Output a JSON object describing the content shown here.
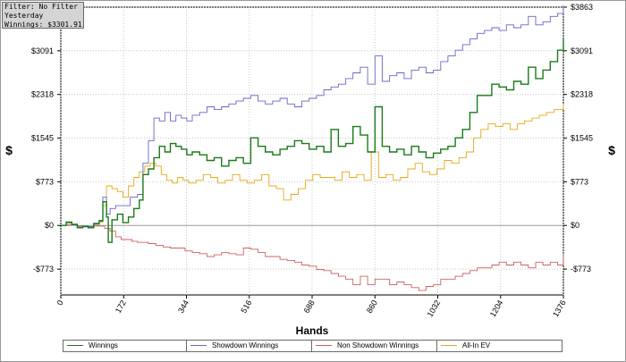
{
  "chart_data": {
    "type": "line",
    "xlabel": "Hands",
    "ylabel": "$",
    "xlim": [
      0,
      1376
    ],
    "ylim": [
      -1230,
      3863
    ],
    "x_ticks": [
      0,
      172,
      344,
      516,
      688,
      860,
      1032,
      1204,
      1376
    ],
    "y_ticks": [
      {
        "value": 3863,
        "label": "$3863"
      },
      {
        "value": 3091,
        "label": "$3091"
      },
      {
        "value": 2318,
        "label": "$2318"
      },
      {
        "value": 1545,
        "label": "$1545"
      },
      {
        "value": 773,
        "label": "$773"
      },
      {
        "value": 0,
        "label": "$0"
      },
      {
        "value": -773,
        "label": "-$773"
      }
    ],
    "grid": true,
    "legend_position": "bottom",
    "series": [
      {
        "name": "Winnings",
        "color": "#1a7a1a",
        "points": [
          [
            0,
            0
          ],
          [
            15,
            60
          ],
          [
            30,
            20
          ],
          [
            45,
            -40
          ],
          [
            60,
            -20
          ],
          [
            75,
            -40
          ],
          [
            90,
            30
          ],
          [
            105,
            80
          ],
          [
            115,
            420
          ],
          [
            125,
            150
          ],
          [
            130,
            -300
          ],
          [
            140,
            100
          ],
          [
            155,
            200
          ],
          [
            170,
            50
          ],
          [
            185,
            150
          ],
          [
            200,
            300
          ],
          [
            215,
            450
          ],
          [
            225,
            900
          ],
          [
            240,
            1000
          ],
          [
            255,
            1200
          ],
          [
            270,
            1400
          ],
          [
            285,
            1300
          ],
          [
            300,
            1450
          ],
          [
            315,
            1400
          ],
          [
            330,
            1350
          ],
          [
            345,
            1250
          ],
          [
            360,
            1300
          ],
          [
            380,
            1250
          ],
          [
            400,
            1150
          ],
          [
            420,
            1200
          ],
          [
            440,
            1050
          ],
          [
            460,
            1150
          ],
          [
            480,
            1200
          ],
          [
            500,
            1100
          ],
          [
            520,
            1550
          ],
          [
            540,
            1400
          ],
          [
            560,
            1300
          ],
          [
            580,
            1250
          ],
          [
            600,
            1350
          ],
          [
            620,
            1400
          ],
          [
            640,
            1500
          ],
          [
            660,
            1450
          ],
          [
            680,
            1350
          ],
          [
            700,
            1400
          ],
          [
            720,
            1300
          ],
          [
            740,
            1700
          ],
          [
            760,
            1400
          ],
          [
            780,
            1450
          ],
          [
            800,
            1750
          ],
          [
            820,
            1600
          ],
          [
            840,
            1300
          ],
          [
            860,
            2100
          ],
          [
            880,
            1400
          ],
          [
            900,
            1300
          ],
          [
            920,
            1350
          ],
          [
            940,
            1250
          ],
          [
            960,
            1400
          ],
          [
            980,
            1300
          ],
          [
            1000,
            1200
          ],
          [
            1020,
            1280
          ],
          [
            1040,
            1350
          ],
          [
            1060,
            1400
          ],
          [
            1080,
            1550
          ],
          [
            1100,
            1700
          ],
          [
            1120,
            2000
          ],
          [
            1140,
            2300
          ],
          [
            1160,
            2300
          ],
          [
            1180,
            2500
          ],
          [
            1200,
            2450
          ],
          [
            1220,
            2400
          ],
          [
            1240,
            2550
          ],
          [
            1260,
            2500
          ],
          [
            1280,
            2800
          ],
          [
            1300,
            2600
          ],
          [
            1320,
            2750
          ],
          [
            1340,
            2900
          ],
          [
            1360,
            3100
          ],
          [
            1376,
            3300
          ]
        ]
      },
      {
        "name": "Showdown Winnings",
        "color": "#6666cc",
        "points": [
          [
            0,
            0
          ],
          [
            15,
            50
          ],
          [
            30,
            10
          ],
          [
            45,
            -30
          ],
          [
            60,
            -10
          ],
          [
            75,
            -20
          ],
          [
            90,
            40
          ],
          [
            105,
            90
          ],
          [
            115,
            500
          ],
          [
            125,
            200
          ],
          [
            135,
            300
          ],
          [
            150,
            350
          ],
          [
            170,
            350
          ],
          [
            190,
            500
          ],
          [
            210,
            550
          ],
          [
            225,
            1100
          ],
          [
            240,
            1500
          ],
          [
            255,
            1900
          ],
          [
            270,
            1850
          ],
          [
            285,
            2000
          ],
          [
            300,
            1850
          ],
          [
            315,
            1950
          ],
          [
            330,
            1900
          ],
          [
            345,
            1850
          ],
          [
            360,
            1950
          ],
          [
            380,
            2000
          ],
          [
            400,
            2100
          ],
          [
            420,
            2050
          ],
          [
            440,
            2100
          ],
          [
            460,
            2150
          ],
          [
            480,
            2200
          ],
          [
            500,
            2250
          ],
          [
            520,
            2300
          ],
          [
            540,
            2200
          ],
          [
            560,
            2150
          ],
          [
            580,
            2200
          ],
          [
            600,
            2250
          ],
          [
            620,
            2150
          ],
          [
            640,
            2100
          ],
          [
            660,
            2200
          ],
          [
            680,
            2250
          ],
          [
            700,
            2300
          ],
          [
            720,
            2400
          ],
          [
            740,
            2450
          ],
          [
            760,
            2500
          ],
          [
            780,
            2600
          ],
          [
            800,
            2700
          ],
          [
            820,
            2800
          ],
          [
            840,
            2500
          ],
          [
            860,
            3000
          ],
          [
            880,
            2550
          ],
          [
            900,
            2650
          ],
          [
            920,
            2700
          ],
          [
            940,
            2600
          ],
          [
            960,
            2750
          ],
          [
            980,
            2800
          ],
          [
            1000,
            2700
          ],
          [
            1020,
            2750
          ],
          [
            1040,
            2900
          ],
          [
            1060,
            3000
          ],
          [
            1080,
            3100
          ],
          [
            1100,
            3200
          ],
          [
            1120,
            3300
          ],
          [
            1140,
            3400
          ],
          [
            1160,
            3450
          ],
          [
            1180,
            3500
          ],
          [
            1200,
            3450
          ],
          [
            1220,
            3550
          ],
          [
            1240,
            3500
          ],
          [
            1260,
            3550
          ],
          [
            1280,
            3700
          ],
          [
            1300,
            3550
          ],
          [
            1320,
            3600
          ],
          [
            1340,
            3700
          ],
          [
            1360,
            3750
          ],
          [
            1376,
            3900
          ]
        ]
      },
      {
        "name": "Non Showdown Winnings",
        "color": "#d06060",
        "points": [
          [
            0,
            0
          ],
          [
            15,
            10
          ],
          [
            30,
            10
          ],
          [
            45,
            -10
          ],
          [
            60,
            -10
          ],
          [
            75,
            -20
          ],
          [
            90,
            -10
          ],
          [
            105,
            -10
          ],
          [
            120,
            -50
          ],
          [
            135,
            -100
          ],
          [
            150,
            -200
          ],
          [
            165,
            -250
          ],
          [
            180,
            -250
          ],
          [
            195,
            -280
          ],
          [
            210,
            -300
          ],
          [
            225,
            -300
          ],
          [
            240,
            -320
          ],
          [
            260,
            -350
          ],
          [
            280,
            -380
          ],
          [
            300,
            -400
          ],
          [
            320,
            -400
          ],
          [
            340,
            -450
          ],
          [
            360,
            -480
          ],
          [
            380,
            -500
          ],
          [
            400,
            -550
          ],
          [
            420,
            -520
          ],
          [
            440,
            -480
          ],
          [
            460,
            -500
          ],
          [
            480,
            -520
          ],
          [
            500,
            -400
          ],
          [
            520,
            -420
          ],
          [
            540,
            -480
          ],
          [
            560,
            -550
          ],
          [
            580,
            -550
          ],
          [
            600,
            -600
          ],
          [
            620,
            -620
          ],
          [
            640,
            -650
          ],
          [
            660,
            -700
          ],
          [
            680,
            -720
          ],
          [
            700,
            -780
          ],
          [
            720,
            -800
          ],
          [
            740,
            -850
          ],
          [
            760,
            -900
          ],
          [
            780,
            -950
          ],
          [
            800,
            -1050
          ],
          [
            820,
            -900
          ],
          [
            840,
            -1050
          ],
          [
            860,
            -950
          ],
          [
            880,
            -950
          ],
          [
            900,
            -1050
          ],
          [
            920,
            -1000
          ],
          [
            940,
            -1050
          ],
          [
            960,
            -1100
          ],
          [
            980,
            -1150
          ],
          [
            1000,
            -1080
          ],
          [
            1020,
            -1050
          ],
          [
            1040,
            -950
          ],
          [
            1060,
            -950
          ],
          [
            1080,
            -900
          ],
          [
            1100,
            -850
          ],
          [
            1120,
            -800
          ],
          [
            1140,
            -750
          ],
          [
            1160,
            -750
          ],
          [
            1180,
            -700
          ],
          [
            1200,
            -650
          ],
          [
            1220,
            -700
          ],
          [
            1240,
            -650
          ],
          [
            1260,
            -700
          ],
          [
            1280,
            -750
          ],
          [
            1300,
            -650
          ],
          [
            1320,
            -700
          ],
          [
            1340,
            -650
          ],
          [
            1360,
            -700
          ],
          [
            1376,
            -500
          ]
        ]
      },
      {
        "name": "All-In EV",
        "color": "#e6a817",
        "points": [
          [
            0,
            0
          ],
          [
            15,
            40
          ],
          [
            30,
            20
          ],
          [
            45,
            -30
          ],
          [
            60,
            -10
          ],
          [
            75,
            -30
          ],
          [
            90,
            20
          ],
          [
            105,
            60
          ],
          [
            115,
            350
          ],
          [
            125,
            700
          ],
          [
            140,
            650
          ],
          [
            155,
            600
          ],
          [
            170,
            500
          ],
          [
            185,
            700
          ],
          [
            200,
            850
          ],
          [
            215,
            950
          ],
          [
            230,
            1050
          ],
          [
            245,
            1100
          ],
          [
            260,
            1050
          ],
          [
            275,
            900
          ],
          [
            290,
            800
          ],
          [
            305,
            750
          ],
          [
            320,
            850
          ],
          [
            335,
            800
          ],
          [
            350,
            750
          ],
          [
            370,
            800
          ],
          [
            390,
            900
          ],
          [
            410,
            850
          ],
          [
            430,
            750
          ],
          [
            450,
            800
          ],
          [
            470,
            900
          ],
          [
            490,
            800
          ],
          [
            510,
            750
          ],
          [
            530,
            800
          ],
          [
            550,
            900
          ],
          [
            570,
            700
          ],
          [
            590,
            650
          ],
          [
            610,
            450
          ],
          [
            630,
            550
          ],
          [
            650,
            650
          ],
          [
            670,
            800
          ],
          [
            690,
            900
          ],
          [
            710,
            850
          ],
          [
            730,
            850
          ],
          [
            750,
            800
          ],
          [
            770,
            950
          ],
          [
            790,
            850
          ],
          [
            810,
            900
          ],
          [
            830,
            800
          ],
          [
            850,
            1300
          ],
          [
            870,
            850
          ],
          [
            890,
            900
          ],
          [
            910,
            800
          ],
          [
            930,
            850
          ],
          [
            950,
            1000
          ],
          [
            970,
            1100
          ],
          [
            990,
            950
          ],
          [
            1010,
            900
          ],
          [
            1030,
            1000
          ],
          [
            1050,
            1150
          ],
          [
            1070,
            1100
          ],
          [
            1090,
            1200
          ],
          [
            1110,
            1300
          ],
          [
            1130,
            1550
          ],
          [
            1150,
            1700
          ],
          [
            1170,
            1800
          ],
          [
            1190,
            1750
          ],
          [
            1210,
            1800
          ],
          [
            1230,
            1700
          ],
          [
            1250,
            1800
          ],
          [
            1270,
            1850
          ],
          [
            1290,
            1900
          ],
          [
            1310,
            1950
          ],
          [
            1330,
            2000
          ],
          [
            1350,
            2050
          ],
          [
            1376,
            2150
          ]
        ]
      }
    ]
  },
  "info": {
    "filter": "Filter: No Filter",
    "period": "Yesterday",
    "winnings": "Winnings: $3301.91"
  }
}
